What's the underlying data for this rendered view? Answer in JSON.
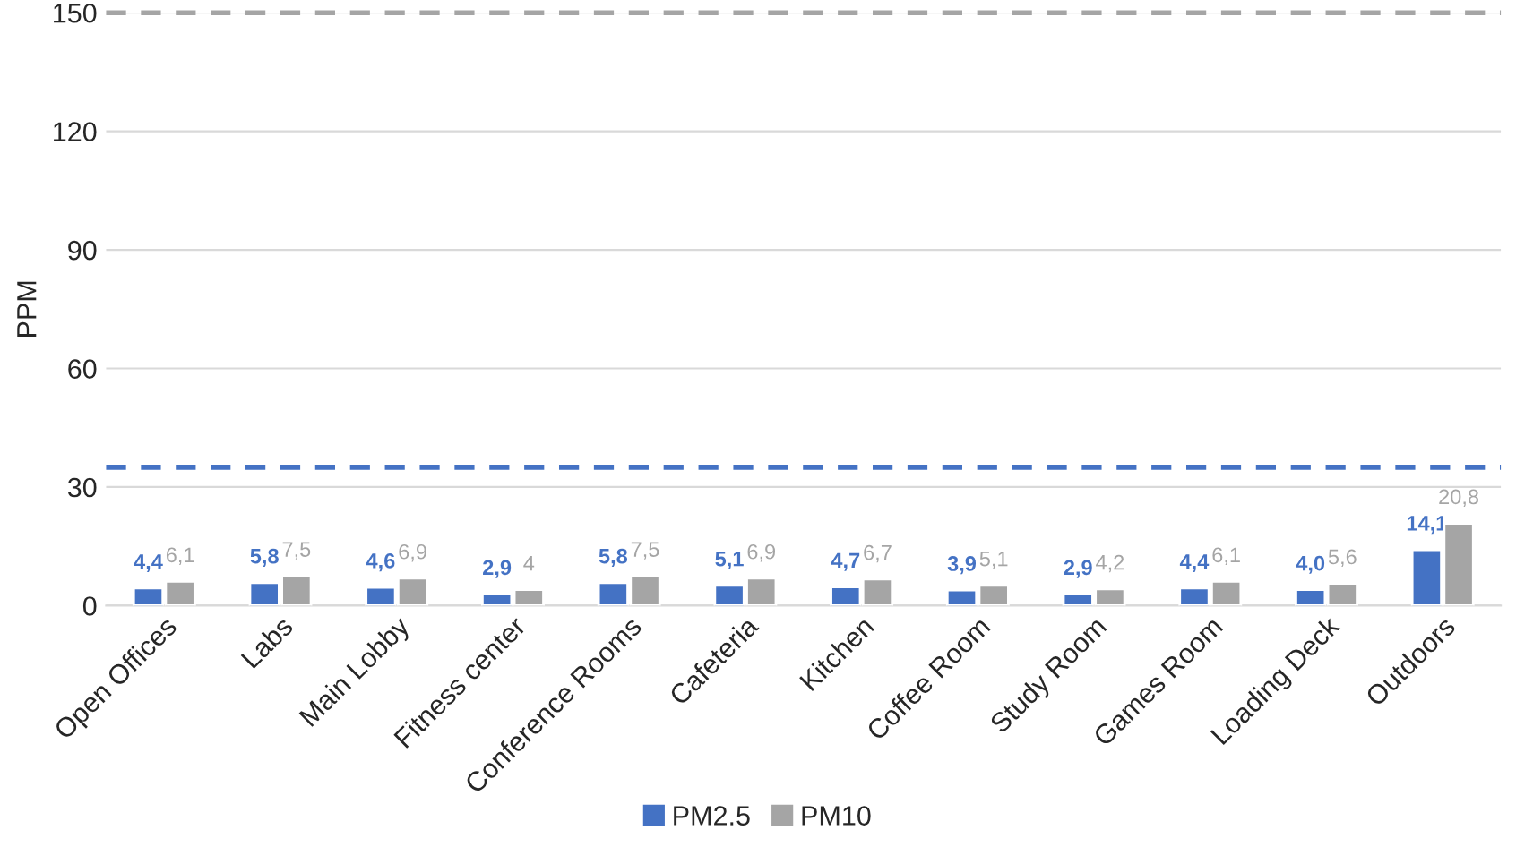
{
  "chart_data": {
    "type": "bar",
    "ylabel": "PPM",
    "categories": [
      "Open Offices",
      "Labs",
      "Main Lobby",
      "Fitness center",
      "Conference Rooms",
      "Cafeteria",
      "Kitchen",
      "Coffee Room",
      "Study Room",
      "Games Room",
      "Loading Deck",
      "Outdoors"
    ],
    "series": [
      {
        "name": "PM2.5",
        "color": "#4472c4",
        "values": [
          4.4,
          5.8,
          4.6,
          2.9,
          5.8,
          5.1,
          4.7,
          3.9,
          2.9,
          4.4,
          4.0,
          14.1
        ],
        "value_labels": [
          "4,4",
          "5,8",
          "4,6",
          "2,9",
          "5,8",
          "5,1",
          "4,7",
          "3,9",
          "2,9",
          "4,4",
          "4,0",
          "14,1"
        ]
      },
      {
        "name": "PM10",
        "color": "#a5a5a5",
        "values": [
          6.1,
          7.5,
          6.9,
          4,
          7.5,
          6.9,
          6.7,
          5.1,
          4.2,
          6.1,
          5.6,
          20.8
        ],
        "value_labels": [
          "6,1",
          "7,5",
          "6,9",
          "4",
          "7,5",
          "6,9",
          "6,7",
          "5,1",
          "4,2",
          "6,1",
          "5,6",
          "20,8"
        ]
      }
    ],
    "ylim": [
      0,
      150
    ],
    "yticks": [
      0,
      30,
      60,
      90,
      120,
      150
    ],
    "grid": "y",
    "legend": "bottom",
    "ref_lines": [
      {
        "axis": "y",
        "value": 35,
        "color": "#4472c4",
        "line_style": "dashed"
      },
      {
        "axis": "y",
        "value": 150,
        "color": "#a5a5a5",
        "line_style": "dashed"
      }
    ]
  }
}
